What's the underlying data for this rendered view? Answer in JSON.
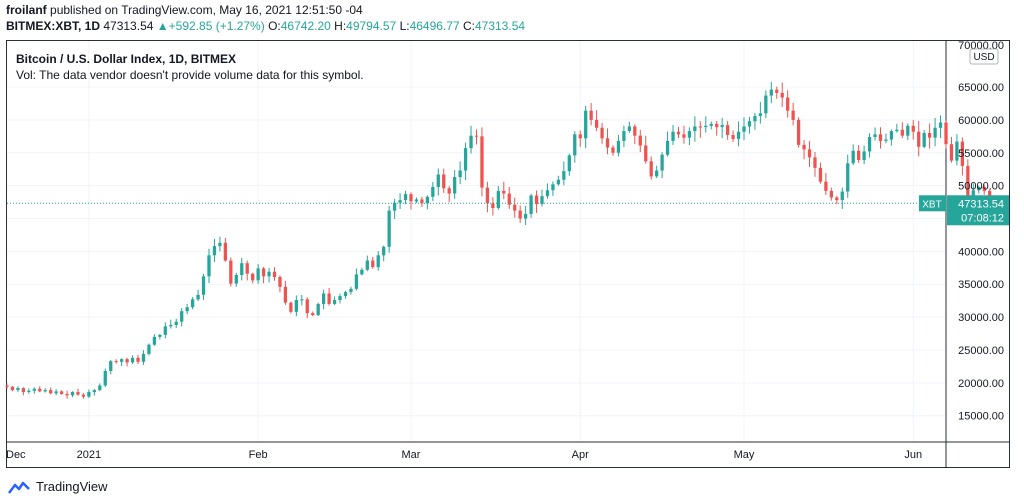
{
  "header": {
    "author": "froilanf",
    "published": "published on TradingView.com, May 16, 2021 12:51:50 -04",
    "symbol": "BITMEX:XBT, 1D",
    "last": "47313.54",
    "change": "+592.85 (+1.27%)",
    "open_label": "O:",
    "open": "46742.20",
    "high_label": "H:",
    "high": "49794.57",
    "low_label": "L:",
    "low": "46496.77",
    "close_label": "C:",
    "close": "47313.54"
  },
  "legend": {
    "title": "Bitcoin / U.S. Dollar Index, 1D, BITMEX",
    "volume_note": "Vol: The data vendor doesn't provide volume data for this symbol."
  },
  "footer": {
    "brand": "TradingView"
  },
  "colors": {
    "up": "#26a69a",
    "down": "#ef5350",
    "text": "#131722",
    "grid": "#f0f3fa",
    "border": "#2a2e39",
    "tag_bg": "#26a69a"
  },
  "chart_data": {
    "type": "candlestick",
    "currency": "USD",
    "price_tag": {
      "symbol": "XBT",
      "price": "47313.54",
      "countdown": "07:08:12"
    },
    "top_label": "70000.00",
    "ylim": [
      11000,
      72000
    ],
    "y_ticks": [
      15000,
      20000,
      25000,
      30000,
      35000,
      40000,
      45000,
      50000,
      55000,
      60000,
      65000
    ],
    "y_tick_labels": [
      "15000.00",
      "20000.00",
      "25000.00",
      "30000.00",
      "35000.00",
      "40000.00",
      "45000.00",
      "50000.00",
      "55000.00",
      "60000.00",
      "65000.00"
    ],
    "x_start": "2020-12-17",
    "x_end": "2021-06-07",
    "x_ticks": [
      {
        "date": "2020-12-01",
        "label": "Dec"
      },
      {
        "date": "2021-01-01",
        "label": "2021"
      },
      {
        "date": "2021-02-01",
        "label": "Feb"
      },
      {
        "date": "2021-03-01",
        "label": "Mar"
      },
      {
        "date": "2021-04-01",
        "label": "Apr"
      },
      {
        "date": "2021-05-01",
        "label": "May"
      },
      {
        "date": "2021-06-01",
        "label": "Jun"
      }
    ],
    "first_date": "2020-12-17",
    "closes": [
      19400,
      18900,
      19200,
      18600,
      18800,
      19100,
      18700,
      18900,
      18400,
      18700,
      18300,
      18100,
      18600,
      18200,
      17900,
      18600,
      18900,
      19600,
      21800,
      23300,
      23200,
      23600,
      23100,
      23800,
      23200,
      24400,
      25800,
      27000,
      27300,
      28600,
      28800,
      29300,
      30900,
      31500,
      32700,
      33400,
      36200,
      39400,
      40800,
      41300,
      38600,
      35100,
      36400,
      38200,
      36600,
      35600,
      37400,
      36200,
      36900,
      36100,
      34600,
      32200,
      30800,
      32600,
      32700,
      30600,
      30300,
      32000,
      33600,
      32000,
      32600,
      33200,
      33800,
      34300,
      36500,
      37200,
      38600,
      37600,
      39400,
      40700,
      46200,
      47400,
      47800,
      48700,
      47600,
      47900,
      47300,
      48300,
      49800,
      51700,
      49600,
      48800,
      51300,
      52300,
      55700,
      57600,
      57500,
      49700,
      47300,
      46600,
      49200,
      48800,
      47100,
      46200,
      45000,
      45700,
      48500,
      47200,
      48400,
      49300,
      50200,
      50900,
      52200,
      54600,
      57800,
      57200,
      61400,
      60000,
      58800,
      57200,
      55800,
      55000,
      56800,
      58300,
      59000,
      57600,
      56100,
      53700,
      51400,
      52300,
      54700,
      56800,
      58200,
      57800,
      57300,
      58300,
      59000,
      58900,
      59100,
      59400,
      58900,
      59200,
      57700,
      57100,
      58200,
      59000,
      59800,
      60600,
      61000,
      63700,
      64600,
      64100,
      63400,
      61400,
      60000,
      56200,
      55500,
      54300,
      52700,
      50600,
      49200,
      48200,
      47800,
      49100,
      53400,
      55300,
      53900,
      55200,
      57400,
      57800,
      56800,
      57000,
      58300,
      58500,
      57600,
      59100,
      58200,
      55900,
      58000,
      57300,
      58800,
      59600,
      56300,
      53800,
      56700,
      53000,
      47800,
      49300,
      49800,
      49200,
      46700,
      47313.54
    ],
    "wick_range": [
      19300,
      58800
    ]
  }
}
